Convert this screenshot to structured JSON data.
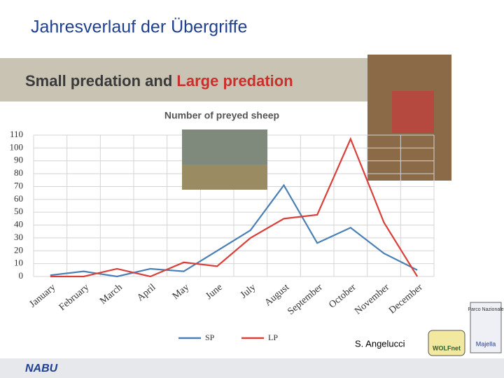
{
  "slide": {
    "title": "Jahresverlauf der Übergriffe",
    "banner": [
      "Small predation",
      "and",
      "Large predation"
    ],
    "credit": "S. Angelucci",
    "logos": [
      "WOLFnet",
      "Parco Nazionale",
      "Majella"
    ],
    "footer": "NABU"
  },
  "chart_data": {
    "type": "line",
    "title": "Number of preyed sheep",
    "categories": [
      "January",
      "February",
      "March",
      "April",
      "May",
      "June",
      "July",
      "August",
      "September",
      "October",
      "November",
      "December"
    ],
    "series": [
      {
        "name": "SP",
        "color": "#4a7fb5",
        "values": [
          1,
          4,
          0,
          6,
          4,
          20,
          36,
          71,
          26,
          38,
          18,
          5
        ]
      },
      {
        "name": "LP",
        "color": "#d9403a",
        "values": [
          0,
          0,
          6,
          0,
          11,
          8,
          30,
          45,
          48,
          107,
          42,
          0
        ]
      }
    ],
    "ylim": [
      0,
      110
    ],
    "yticks": [
      0,
      10,
      20,
      30,
      40,
      50,
      60,
      70,
      80,
      90,
      100,
      110
    ],
    "grid": true,
    "legend": "bottom"
  }
}
